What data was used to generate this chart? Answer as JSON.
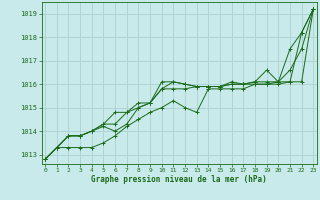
{
  "bg_color": "#c8eaea",
  "grid_color": "#b0d4d4",
  "line_color": "#1a6b1a",
  "marker_color": "#1a6b1a",
  "title": "Graphe pression niveau de la mer (hPa)",
  "ylim": [
    1012.6,
    1019.5
  ],
  "xlim": [
    -0.3,
    23.3
  ],
  "yticks": [
    1013,
    1014,
    1015,
    1016,
    1017,
    1018,
    1019
  ],
  "xticks": [
    0,
    1,
    2,
    3,
    4,
    5,
    6,
    7,
    8,
    9,
    10,
    11,
    12,
    13,
    14,
    15,
    16,
    17,
    18,
    19,
    20,
    21,
    22,
    23
  ],
  "series": [
    [
      1012.8,
      1013.3,
      1013.8,
      1013.8,
      1014.0,
      1014.2,
      1014.0,
      1014.3,
      1015.0,
      1015.2,
      1016.1,
      1016.1,
      1016.0,
      1015.9,
      1015.9,
      1015.9,
      1016.1,
      1016.0,
      1016.1,
      1016.6,
      1016.1,
      1017.5,
      1018.2,
      1019.2
    ],
    [
      1012.8,
      1013.3,
      1013.3,
      1013.3,
      1013.3,
      1013.5,
      1013.8,
      1014.2,
      1014.5,
      1014.8,
      1015.0,
      1015.3,
      1015.0,
      1014.8,
      1015.8,
      1015.8,
      1015.8,
      1015.8,
      1016.0,
      1016.0,
      1016.1,
      1016.1,
      1016.1,
      1019.2
    ],
    [
      1012.8,
      1013.3,
      1013.8,
      1013.8,
      1014.0,
      1014.3,
      1014.8,
      1014.8,
      1015.0,
      1015.2,
      1015.8,
      1015.8,
      1015.8,
      1015.9,
      1015.9,
      1015.9,
      1016.0,
      1016.0,
      1016.0,
      1016.0,
      1016.0,
      1016.1,
      1018.2,
      1019.2
    ],
    [
      1012.8,
      1013.3,
      1013.8,
      1013.8,
      1014.0,
      1014.3,
      1014.3,
      1014.8,
      1015.2,
      1015.2,
      1015.8,
      1016.1,
      1016.0,
      1015.9,
      1015.9,
      1015.9,
      1016.0,
      1016.0,
      1016.1,
      1016.1,
      1016.1,
      1016.6,
      1017.5,
      1019.2
    ]
  ]
}
